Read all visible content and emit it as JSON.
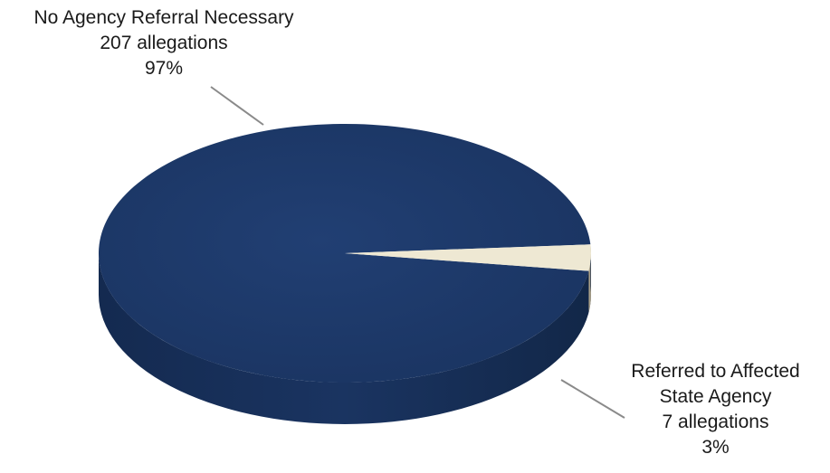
{
  "chart_data": {
    "type": "pie",
    "title": "",
    "slices": [
      {
        "label": "No Agency Referral Necessary",
        "count_text": "207 allegations",
        "pct_text": "97%",
        "value": 207,
        "color": "#1d3a6b"
      },
      {
        "label": "Referred to Affected State Agency",
        "count_text": "7 allegations",
        "pct_text": "3%",
        "value": 7,
        "color": "#eee8d3"
      }
    ],
    "legend": "none",
    "style": "3d"
  }
}
